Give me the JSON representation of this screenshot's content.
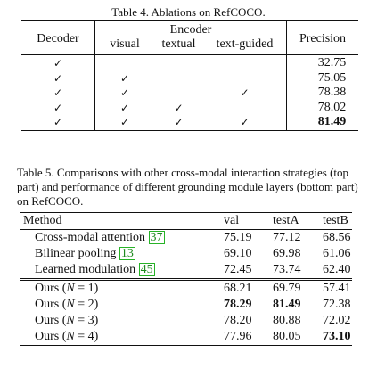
{
  "table4": {
    "caption": "Table 4. Ablations on RefCOCO.",
    "headers": {
      "decoder": "Decoder",
      "encoder": "Encoder",
      "visual": "visual",
      "textual": "textual",
      "text_guided": "text-guided",
      "precision": "Precision"
    },
    "check_mark": "✓",
    "rows": [
      {
        "decoder": "✓",
        "visual": "",
        "textual": "",
        "text_guided": "",
        "precision": "32.75",
        "bold": false
      },
      {
        "decoder": "✓",
        "visual": "✓",
        "textual": "",
        "text_guided": "",
        "precision": "75.05",
        "bold": false
      },
      {
        "decoder": "✓",
        "visual": "✓",
        "textual": "",
        "text_guided": "✓",
        "precision": "78.38",
        "bold": false
      },
      {
        "decoder": "✓",
        "visual": "✓",
        "textual": "✓",
        "text_guided": "",
        "precision": "78.02",
        "bold": false
      },
      {
        "decoder": "✓",
        "visual": "✓",
        "textual": "✓",
        "text_guided": "✓",
        "precision": "81.49",
        "bold": true
      }
    ]
  },
  "table5": {
    "caption": "Table 5. Comparisons with other cross-modal interaction strategies (top part) and performance of different grounding module layers (bottom part) on RefCOCO.",
    "headers": {
      "method": "Method",
      "val": "val",
      "testA": "testA",
      "testB": "testB"
    },
    "top_rows": [
      {
        "method": "Cross-modal attention",
        "ref": "37",
        "val": "75.19",
        "testA": "77.12",
        "testB": "68.56"
      },
      {
        "method": "Bilinear pooling",
        "ref": "13",
        "val": "69.10",
        "testA": "69.98",
        "testB": "61.06"
      },
      {
        "method": "Learned modulation",
        "ref": "45",
        "val": "72.45",
        "testA": "73.74",
        "testB": "62.40"
      }
    ],
    "bottom_rows": [
      {
        "method": "Ours",
        "n_symbol": "N",
        "n_value": "1",
        "val": "68.21",
        "testA": "69.79",
        "testB": "57.41",
        "bold": []
      },
      {
        "method": "Ours",
        "n_symbol": "N",
        "n_value": "2",
        "val": "78.29",
        "testA": "81.49",
        "testB": "72.38",
        "bold": [
          "val",
          "testA"
        ]
      },
      {
        "method": "Ours",
        "n_symbol": "N",
        "n_value": "3",
        "val": "78.20",
        "testA": "80.88",
        "testB": "72.02",
        "bold": []
      },
      {
        "method": "Ours",
        "n_symbol": "N",
        "n_value": "4",
        "val": "77.96",
        "testA": "80.05",
        "testB": "73.10",
        "bold": [
          "testB"
        ]
      }
    ]
  }
}
